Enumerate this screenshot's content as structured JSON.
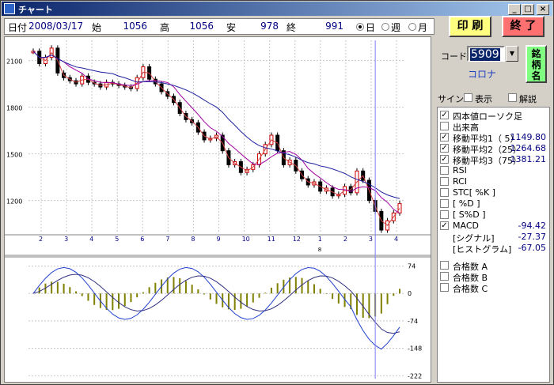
{
  "window": {
    "title": "チャート",
    "min": "_",
    "max": "□",
    "close": "×"
  },
  "info": {
    "date_label": "日付",
    "date": "2008/03/17",
    "open_label": "始",
    "open": "1056",
    "high_label": "高",
    "high": "1056",
    "low_label": "安",
    "low": "978",
    "close_label": "終",
    "close": "991",
    "period_options": [
      "日",
      "週",
      "月"
    ],
    "period_selected": "日"
  },
  "buttons": {
    "print": "印 刷",
    "exit": "終 了",
    "brand_line1": "銘",
    "brand_line2": "柄",
    "brand_line3": "名"
  },
  "code": {
    "label": "コード",
    "value": "5909",
    "name": "コロナ"
  },
  "sign": {
    "label": "サイン",
    "show": "表示",
    "explain": "解説"
  },
  "indicators": [
    {
      "label": "四本値ローソク足",
      "checked": true,
      "value": ""
    },
    {
      "label": "出来高",
      "checked": false,
      "value": ""
    },
    {
      "label": "移動平均1（ 5）",
      "checked": true,
      "value": "1149.80"
    },
    {
      "label": "移動平均2（25）",
      "checked": true,
      "value": "1264.68"
    },
    {
      "label": "移動平均3（75）",
      "checked": true,
      "value": "1381.21"
    },
    {
      "label": "RSI",
      "checked": false,
      "value": ""
    },
    {
      "label": "RCI",
      "checked": false,
      "value": ""
    },
    {
      "label": "STC[ %K ]",
      "checked": false,
      "value": ""
    },
    {
      "label": "[ %D ]",
      "checked": false,
      "value": ""
    },
    {
      "label": "[ S%D ]",
      "checked": false,
      "value": ""
    },
    {
      "label": "MACD",
      "checked": true,
      "value": "-94.42"
    },
    {
      "label": "[シグナル]",
      "checked": null,
      "value": "-27.37"
    },
    {
      "label": "[ヒストグラム]",
      "checked": null,
      "value": "-67.05"
    }
  ],
  "groups": [
    {
      "label": "合格数 A",
      "checked": false
    },
    {
      "label": "合格数 B",
      "checked": false
    },
    {
      "label": "合格数 C",
      "checked": false
    }
  ],
  "chart_data": {
    "type": "candlestick",
    "y_ticks": [
      2100,
      1800,
      1500,
      1200
    ],
    "ylim": [
      1000,
      2230
    ],
    "x_month_ticks": [
      "2",
      "3",
      "4",
      "5",
      "6",
      "7",
      "8",
      "9",
      "10",
      "11",
      "12",
      "1",
      "2",
      "3",
      "4"
    ],
    "year_marker": "8",
    "price_points": [
      [
        0,
        2160
      ],
      [
        1,
        2080
      ],
      [
        2,
        2120
      ],
      [
        3,
        2180
      ],
      [
        4,
        2020
      ],
      [
        5,
        1990
      ],
      [
        6,
        1970
      ],
      [
        7,
        1950
      ],
      [
        8,
        2000
      ],
      [
        9,
        1960
      ],
      [
        10,
        1950
      ],
      [
        11,
        1930
      ],
      [
        12,
        1960
      ],
      [
        13,
        1950
      ],
      [
        14,
        1940
      ],
      [
        15,
        1930
      ],
      [
        16,
        1920
      ],
      [
        17,
        1990
      ],
      [
        18,
        2060
      ],
      [
        19,
        1980
      ],
      [
        20,
        1950
      ],
      [
        21,
        1900
      ],
      [
        22,
        1870
      ],
      [
        23,
        1830
      ],
      [
        24,
        1760
      ],
      [
        25,
        1720
      ],
      [
        26,
        1700
      ],
      [
        27,
        1640
      ],
      [
        28,
        1590
      ],
      [
        29,
        1600
      ],
      [
        30,
        1620
      ],
      [
        31,
        1520
      ],
      [
        32,
        1430
      ],
      [
        33,
        1450
      ],
      [
        34,
        1380
      ],
      [
        35,
        1400
      ],
      [
        36,
        1430
      ],
      [
        37,
        1500
      ],
      [
        38,
        1560
      ],
      [
        39,
        1620
      ],
      [
        40,
        1520
      ],
      [
        41,
        1430
      ],
      [
        42,
        1460
      ],
      [
        43,
        1390
      ],
      [
        44,
        1340
      ],
      [
        45,
        1300
      ],
      [
        46,
        1320
      ],
      [
        47,
        1260
      ],
      [
        48,
        1280
      ],
      [
        49,
        1230
      ],
      [
        50,
        1240
      ],
      [
        51,
        1290
      ],
      [
        52,
        1250
      ],
      [
        53,
        1390
      ],
      [
        54,
        1330
      ],
      [
        55,
        1200
      ],
      [
        56,
        1130
      ],
      [
        57,
        1010
      ],
      [
        58,
        1070
      ],
      [
        59,
        1120
      ],
      [
        60,
        1180
      ]
    ],
    "ma_labels": [
      "5",
      "25",
      "75"
    ],
    "macd_ticks": [
      "74",
      "0",
      "-74",
      "-148",
      "-222"
    ],
    "macd_ylim": [
      -230,
      90
    ]
  },
  "colors": {
    "ma5": "#d04040",
    "ma25": "#a000a0",
    "ma75": "#2020a0",
    "macd": "#2040d0",
    "signal": "#303080",
    "hist": "#808000",
    "cursor": "#8080ff",
    "grid": "#c8c8c8"
  }
}
